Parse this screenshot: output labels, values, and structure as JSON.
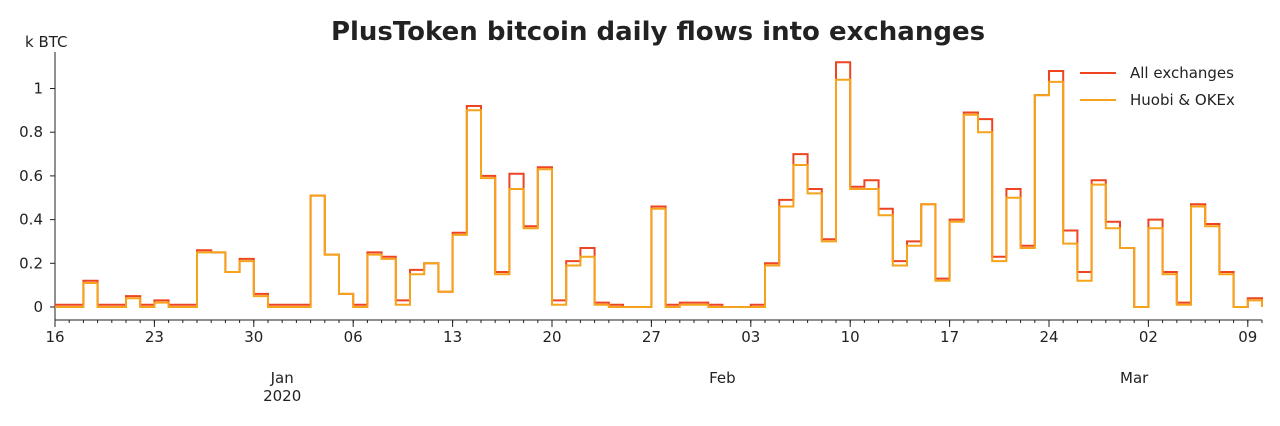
{
  "chart_data": {
    "type": "line",
    "step": true,
    "title": "PlusToken bitcoin daily flows into exchanges",
    "ylabel": "k BTC",
    "ylim": [
      -0.06,
      1.16
    ],
    "yticks": [
      "0",
      "0.2",
      "0.4",
      "0.6",
      "0.8",
      "1"
    ],
    "ytick_values": [
      0,
      0.2,
      0.4,
      0.6,
      0.8,
      1
    ],
    "xlim": [
      "2019-12-16",
      "2020-03-09"
    ],
    "x_start": "2019-12-16",
    "xticks": [
      {
        "day": 0,
        "label": "16"
      },
      {
        "day": 7,
        "label": "23"
      },
      {
        "day": 14,
        "label": "30"
      },
      {
        "day": 21,
        "label": "06"
      },
      {
        "day": 28,
        "label": "13"
      },
      {
        "day": 35,
        "label": "20"
      },
      {
        "day": 42,
        "label": "27"
      },
      {
        "day": 49,
        "label": "03"
      },
      {
        "day": 56,
        "label": "10"
      },
      {
        "day": 63,
        "label": "17"
      },
      {
        "day": 70,
        "label": "24"
      },
      {
        "day": 77,
        "label": "02"
      },
      {
        "day": 84,
        "label": "09"
      }
    ],
    "month_labels": [
      {
        "day": 16,
        "label": "Jan",
        "sub": "2020"
      },
      {
        "day": 47,
        "label": "Feb",
        "sub": ""
      },
      {
        "day": 76,
        "label": "Mar",
        "sub": ""
      }
    ],
    "legend_position": "top-right",
    "series": [
      {
        "name": "All exchanges",
        "color": "#ee4422",
        "values": [
          0.01,
          0.01,
          0.12,
          0.01,
          0.01,
          0.05,
          0.01,
          0.03,
          0.01,
          0.01,
          0.26,
          0.25,
          0.16,
          0.22,
          0.06,
          0.01,
          0.01,
          0.01,
          0.51,
          0.24,
          0.06,
          0.01,
          0.25,
          0.23,
          0.03,
          0.17,
          0.2,
          0.07,
          0.34,
          0.92,
          0.6,
          0.16,
          0.61,
          0.37,
          0.64,
          0.03,
          0.21,
          0.27,
          0.02,
          0.01,
          0.0,
          0.0,
          0.46,
          0.01,
          0.02,
          0.02,
          0.01,
          0.0,
          0.0,
          0.01,
          0.2,
          0.49,
          0.7,
          0.54,
          0.31,
          1.12,
          0.55,
          0.58,
          0.45,
          0.21,
          0.3,
          0.47,
          0.13,
          0.4,
          0.89,
          0.86,
          0.23,
          0.54,
          0.28,
          0.97,
          1.08,
          0.35,
          0.16,
          0.58,
          0.39,
          0.27,
          0.0,
          0.4,
          0.16,
          0.02,
          0.47,
          0.38,
          0.16,
          0.0,
          0.04,
          0.0
        ]
      },
      {
        "name": "Huobi & OKEx",
        "color": "#f5a31a",
        "values": [
          0.0,
          0.0,
          0.11,
          0.0,
          0.0,
          0.04,
          0.0,
          0.02,
          0.0,
          0.0,
          0.25,
          0.25,
          0.16,
          0.21,
          0.05,
          0.0,
          0.0,
          0.0,
          0.51,
          0.24,
          0.06,
          0.0,
          0.24,
          0.22,
          0.01,
          0.15,
          0.2,
          0.07,
          0.33,
          0.9,
          0.59,
          0.15,
          0.54,
          0.36,
          0.63,
          0.01,
          0.19,
          0.23,
          0.01,
          0.0,
          0.0,
          0.0,
          0.45,
          0.0,
          0.01,
          0.01,
          0.0,
          0.0,
          0.0,
          0.0,
          0.19,
          0.46,
          0.65,
          0.52,
          0.3,
          1.04,
          0.54,
          0.54,
          0.42,
          0.19,
          0.28,
          0.47,
          0.12,
          0.39,
          0.88,
          0.8,
          0.21,
          0.5,
          0.27,
          0.97,
          1.03,
          0.29,
          0.12,
          0.56,
          0.36,
          0.27,
          0.0,
          0.36,
          0.15,
          0.01,
          0.46,
          0.37,
          0.15,
          0.0,
          0.03,
          0.0
        ]
      }
    ]
  }
}
